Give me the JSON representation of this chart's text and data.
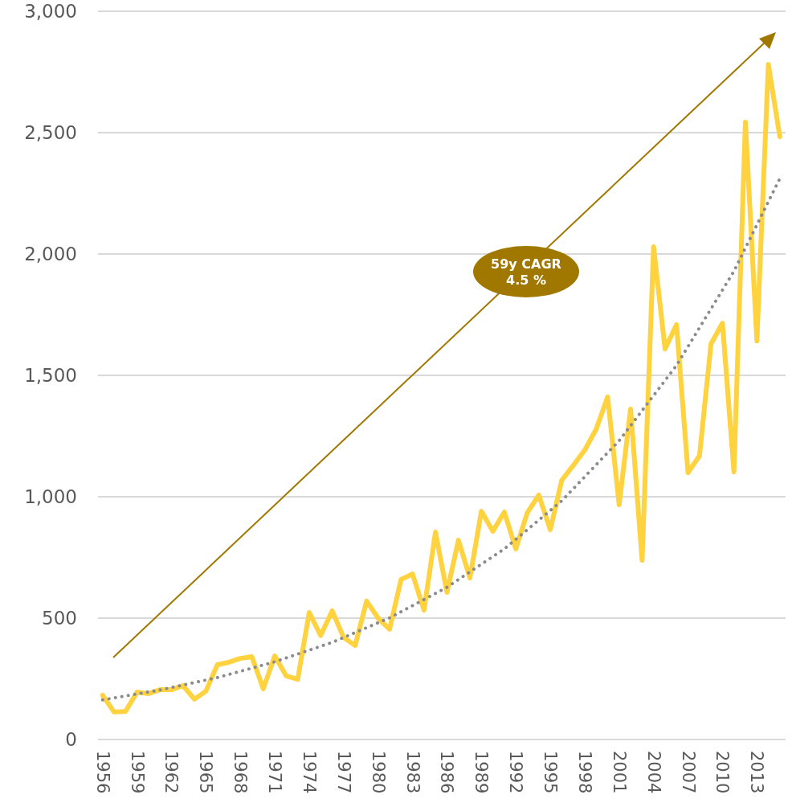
{
  "chart_data": {
    "type": "line",
    "x": [
      1956,
      1957,
      1958,
      1959,
      1960,
      1961,
      1962,
      1963,
      1964,
      1965,
      1966,
      1967,
      1968,
      1969,
      1970,
      1971,
      1972,
      1973,
      1974,
      1975,
      1976,
      1977,
      1978,
      1979,
      1980,
      1981,
      1982,
      1983,
      1984,
      1985,
      1986,
      1987,
      1988,
      1989,
      1990,
      1991,
      1992,
      1993,
      1994,
      1995,
      1996,
      1997,
      1998,
      1999,
      2000,
      2001,
      2002,
      2003,
      2004,
      2005,
      2006,
      2007,
      2008,
      2009,
      2010,
      2011,
      2012,
      2013,
      2014,
      2015
    ],
    "series": [
      {
        "color": "#ffd23f",
        "line_style": "solid",
        "values": [
          182,
          113,
          116,
          195,
          189,
          205,
          205,
          222,
          166,
          199,
          308,
          318,
          334,
          341,
          209,
          344,
          262,
          248,
          523,
          428,
          530,
          420,
          387,
          570,
          500,
          454,
          659,
          682,
          533,
          854,
          606,
          821,
          665,
          940,
          858,
          937,
          785,
          934,
          1007,
          864,
          1068,
          1129,
          1192,
          1278,
          1411,
          967,
          1361,
          738,
          2030,
          1609,
          1709,
          1099,
          1169,
          1629,
          1715,
          1103,
          2543,
          1642,
          2781,
          2483
        ]
      },
      {
        "type": "line",
        "color": "#8c8c8c",
        "line_style": "dotted",
        "x": [
          1956,
          1961,
          1966,
          1971,
          1976,
          1981,
          1986,
          1991,
          1996,
          2001,
          2006,
          2011,
          2015
        ],
        "values": [
          163,
          204,
          255,
          320,
          400,
          501,
          627,
          785,
          983,
          1231,
          1541,
          1929,
          2311
        ]
      }
    ],
    "xlim": [
      1955.6,
      2015.5
    ],
    "xticks": [
      1956,
      1959,
      1962,
      1965,
      1968,
      1971,
      1974,
      1977,
      1980,
      1983,
      1986,
      1989,
      1992,
      1995,
      1998,
      2001,
      2004,
      2007,
      2010,
      2013
    ],
    "ylim": [
      0,
      3000
    ],
    "yticks": [
      0,
      {
        "value": 500,
        "label": "500"
      },
      {
        "value": 1000,
        "label": "1,000"
      },
      {
        "value": 1500,
        "label": "1,500"
      },
      {
        "value": 2000,
        "label": "2,000"
      },
      {
        "value": 2500,
        "label": "2,500"
      },
      {
        "value": 3000,
        "label": "3,000"
      }
    ],
    "grid": "y",
    "marker": "none",
    "annotations": [
      "59y CAGR\n4.5 %"
    ]
  }
}
